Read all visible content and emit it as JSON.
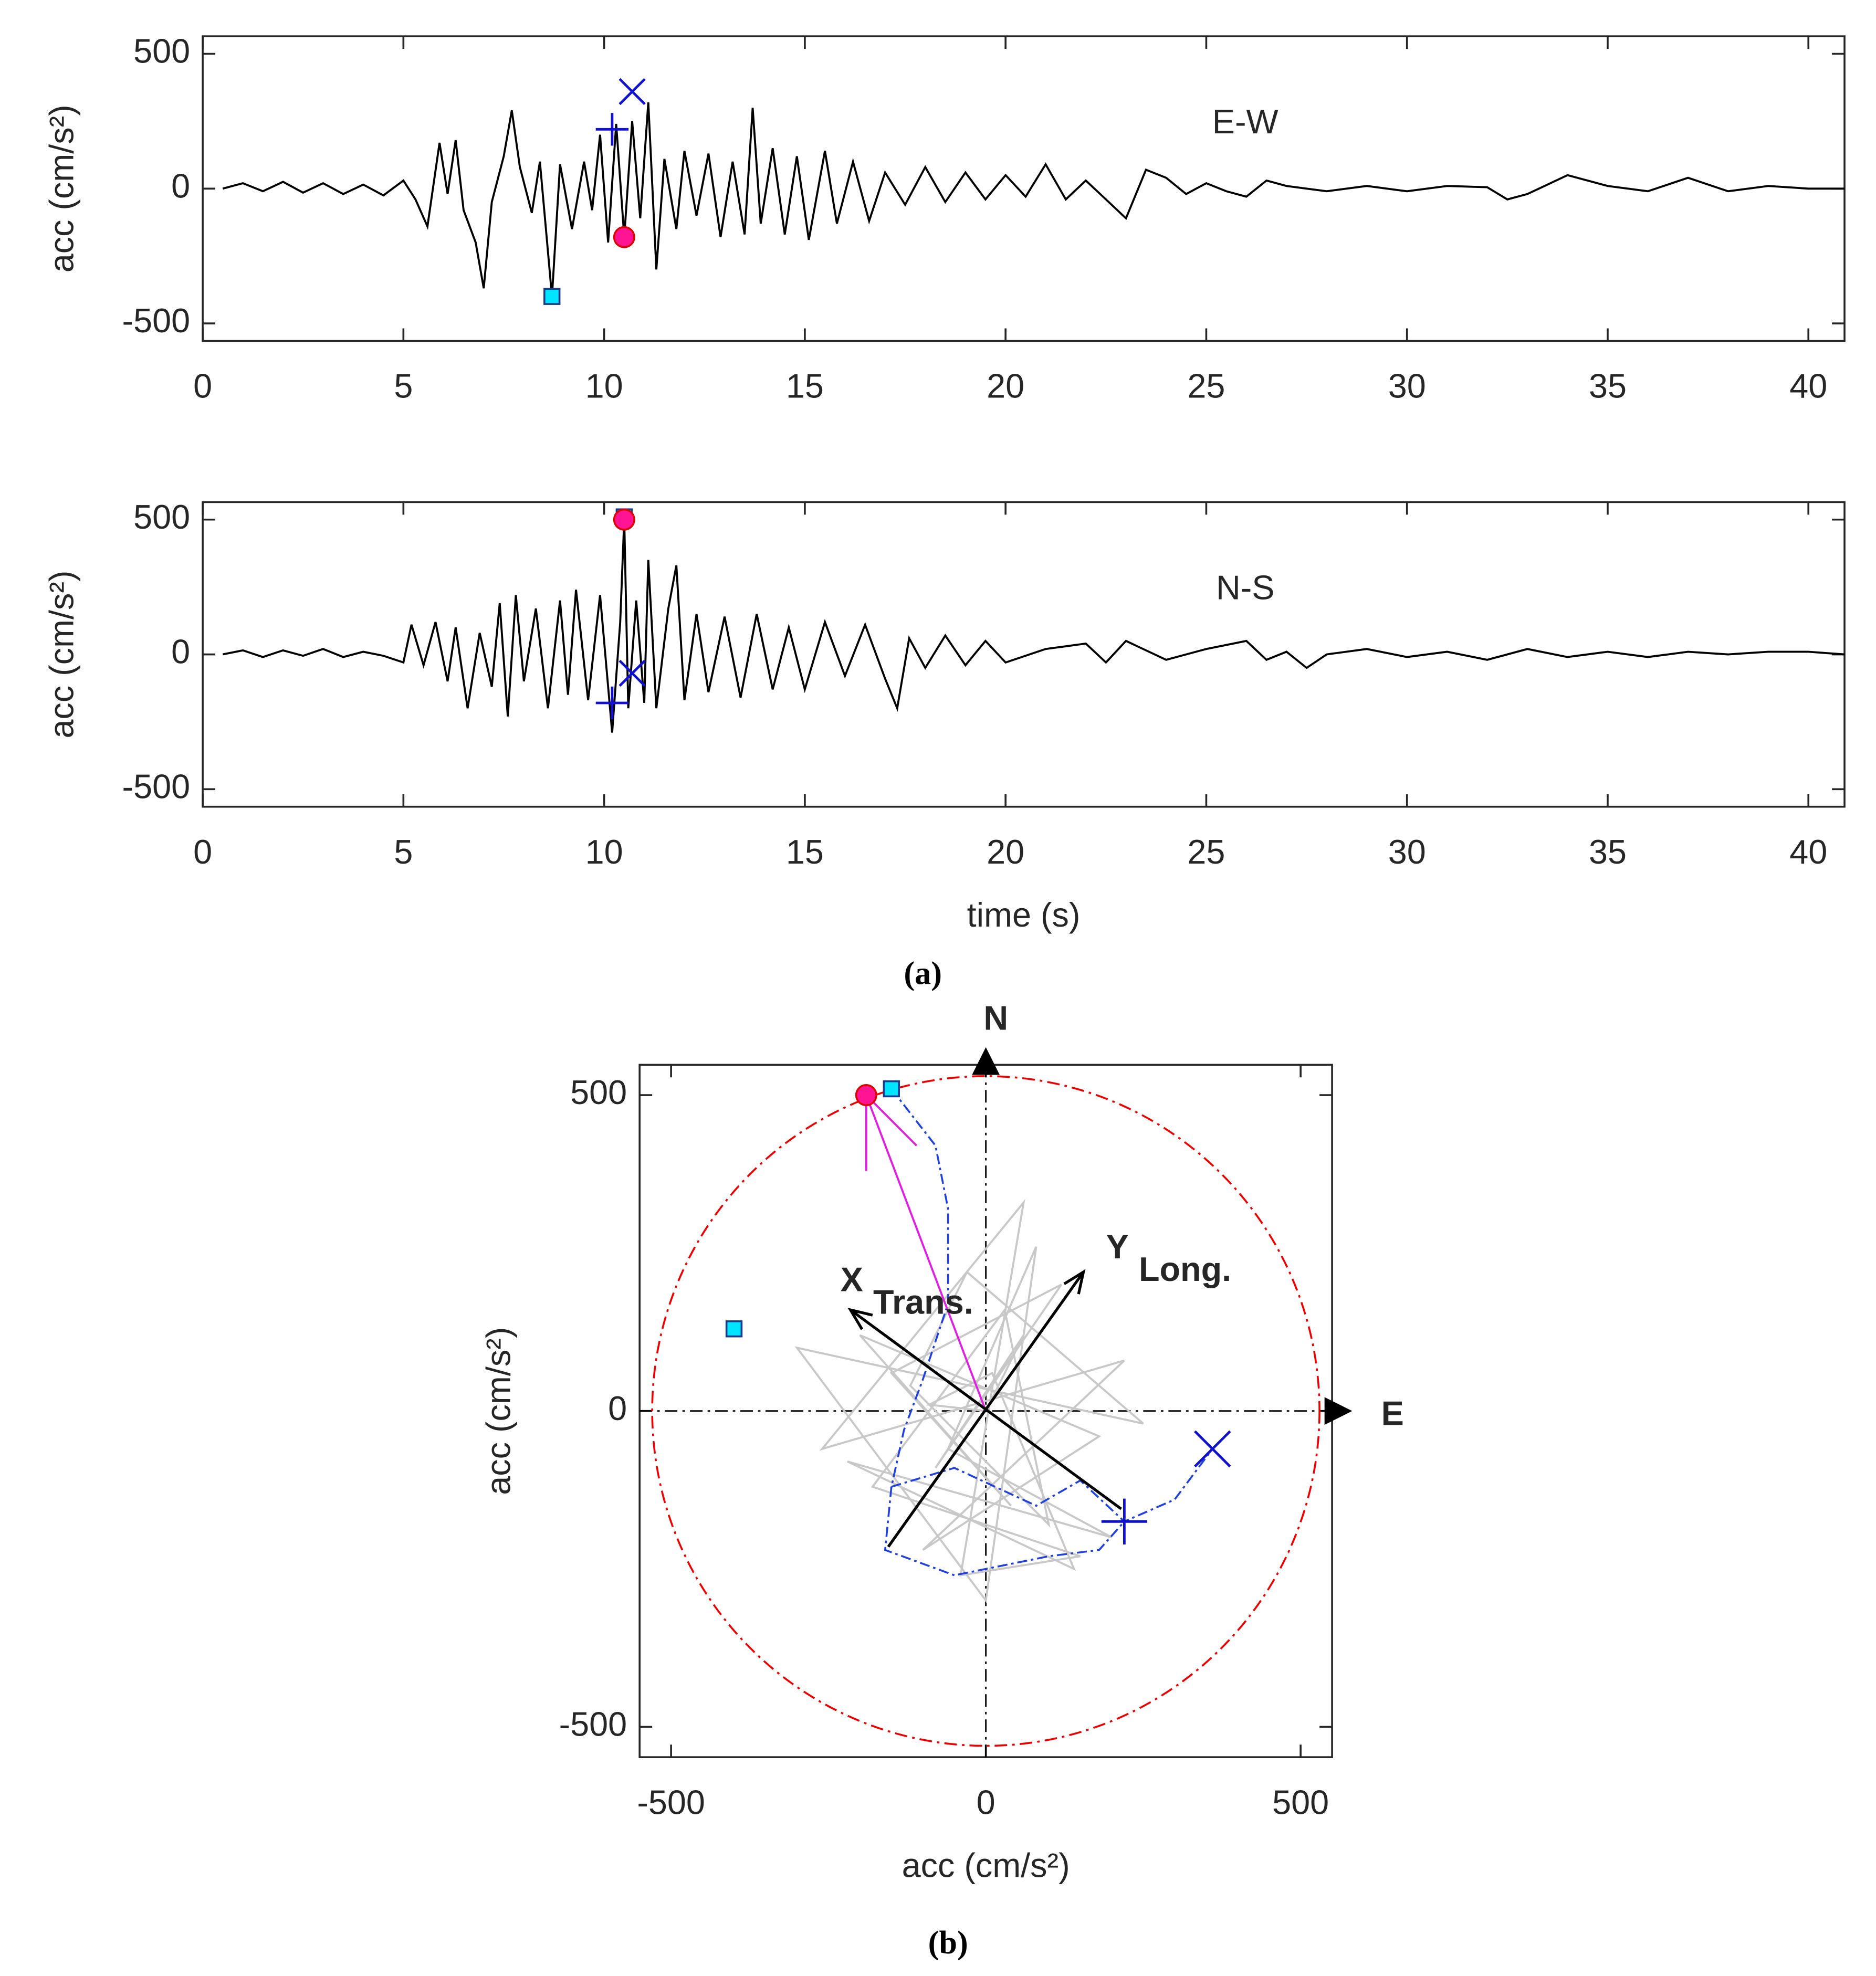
{
  "chart_data": [
    {
      "type": "line",
      "ylabel": "acc (cm/s²)",
      "annotation": "E-W",
      "xlim": [
        0,
        40.9
      ],
      "ylim": [
        -565,
        565
      ],
      "xticks": [
        0,
        5,
        10,
        15,
        20,
        25,
        30,
        35,
        40
      ],
      "yticks": [
        -500,
        0,
        500
      ],
      "x": [
        0.5,
        1,
        1.5,
        2,
        2.5,
        3,
        3.5,
        4,
        4.5,
        5,
        5.3,
        5.6,
        5.9,
        6.1,
        6.3,
        6.5,
        6.8,
        7,
        7.2,
        7.5,
        7.7,
        7.9,
        8.2,
        8.4,
        8.7,
        8.9,
        9.2,
        9.5,
        9.7,
        9.9,
        10.1,
        10.3,
        10.5,
        10.7,
        10.9,
        11.1,
        11.3,
        11.5,
        11.8,
        12,
        12.3,
        12.6,
        12.9,
        13.2,
        13.5,
        13.7,
        13.9,
        14.2,
        14.5,
        14.8,
        15.1,
        15.5,
        15.8,
        16.2,
        16.6,
        17,
        17.5,
        18,
        18.5,
        19,
        19.5,
        20,
        20.5,
        21,
        21.5,
        22,
        22.5,
        23,
        23.5,
        24,
        24.5,
        25,
        25.5,
        26,
        26.5,
        27,
        28,
        29,
        30,
        31,
        32,
        32.5,
        33,
        34,
        35,
        36,
        37,
        38,
        39,
        40,
        40.9
      ],
      "series": [
        {
          "color": "#000000",
          "values": [
            0,
            20,
            -10,
            25,
            -15,
            20,
            -20,
            15,
            -25,
            30,
            -40,
            -140,
            170,
            -20,
            180,
            -80,
            -200,
            -370,
            -50,
            120,
            290,
            80,
            -90,
            100,
            -400,
            90,
            -150,
            100,
            -80,
            200,
            -200,
            240,
            -180,
            250,
            -110,
            320,
            -300,
            110,
            -150,
            140,
            -100,
            130,
            -180,
            100,
            -170,
            300,
            -130,
            150,
            -170,
            120,
            -190,
            140,
            -130,
            100,
            -120,
            60,
            -60,
            80,
            -50,
            60,
            -40,
            50,
            -30,
            90,
            -40,
            30,
            -40,
            -110,
            70,
            40,
            -20,
            20,
            -10,
            -30,
            30,
            10,
            -10,
            10,
            -10,
            10,
            5,
            -40,
            -20,
            50,
            10,
            -10,
            40,
            -10,
            10,
            0,
            0
          ]
        }
      ],
      "markers": [
        {
          "shape": "square",
          "x": 8.7,
          "y": -400
        },
        {
          "shape": "circle",
          "x": 10.5,
          "y": -180
        },
        {
          "shape": "plus",
          "x": 10.2,
          "y": 220
        },
        {
          "shape": "cross",
          "x": 10.7,
          "y": 360
        }
      ]
    },
    {
      "type": "line",
      "ylabel": "acc (cm/s²)",
      "xlabel": "time (s)",
      "annotation": "N-S",
      "caption": "(a)",
      "xlim": [
        0,
        40.9
      ],
      "ylim": [
        -565,
        565
      ],
      "xticks": [
        0,
        5,
        10,
        15,
        20,
        25,
        30,
        35,
        40
      ],
      "yticks": [
        -500,
        0,
        500
      ],
      "x": [
        0.5,
        1,
        1.5,
        2,
        2.5,
        3,
        3.5,
        4,
        4.5,
        5,
        5.2,
        5.5,
        5.8,
        6.1,
        6.3,
        6.6,
        6.9,
        7.2,
        7.4,
        7.6,
        7.8,
        8,
        8.3,
        8.6,
        8.9,
        9.1,
        9.3,
        9.6,
        9.9,
        10.2,
        10.4,
        10.5,
        10.6,
        10.8,
        11,
        11.1,
        11.3,
        11.6,
        11.8,
        12,
        12.3,
        12.6,
        13,
        13.4,
        13.8,
        14.2,
        14.6,
        15,
        15.5,
        16,
        16.5,
        17,
        17.3,
        17.6,
        18,
        18.5,
        19,
        19.5,
        20,
        21,
        22,
        22.5,
        23,
        24,
        25,
        26,
        26.5,
        27,
        27.5,
        28,
        29,
        30,
        31,
        32,
        33,
        34,
        35,
        36,
        37,
        38,
        39,
        40,
        40.9
      ],
      "series": [
        {
          "color": "#000000",
          "values": [
            0,
            15,
            -10,
            15,
            -5,
            20,
            -10,
            10,
            -5,
            -30,
            110,
            -40,
            120,
            -100,
            100,
            -200,
            80,
            -120,
            190,
            -230,
            220,
            -100,
            170,
            -200,
            200,
            -150,
            240,
            -170,
            220,
            -290,
            120,
            500,
            -200,
            200,
            -180,
            350,
            -200,
            170,
            330,
            -170,
            150,
            -140,
            140,
            -160,
            150,
            -130,
            100,
            -130,
            120,
            -80,
            110,
            -90,
            -200,
            60,
            -50,
            70,
            -40,
            50,
            -30,
            20,
            40,
            -30,
            50,
            -20,
            20,
            50,
            -20,
            10,
            -50,
            0,
            20,
            -10,
            10,
            -20,
            20,
            -10,
            10,
            -10,
            10,
            0,
            10,
            10,
            0
          ]
        }
      ],
      "markers": [
        {
          "shape": "square",
          "x": 10.5,
          "y": 510
        },
        {
          "shape": "circle",
          "x": 10.5,
          "y": 500
        },
        {
          "shape": "plus",
          "x": 10.2,
          "y": -180
        },
        {
          "shape": "cross",
          "x": 10.7,
          "y": -70
        }
      ]
    },
    {
      "type": "scatter",
      "xlabel": "acc (cm/s²)",
      "ylabel": "acc (cm/s²)",
      "caption": "(b)",
      "north": "N",
      "east": "E",
      "xlim": [
        -550,
        550
      ],
      "ylim": [
        -548,
        548
      ],
      "xticks": [
        -500,
        0,
        500
      ],
      "yticks": [
        -500,
        0,
        500
      ],
      "circle_radius": 530,
      "trace": {
        "x": [
          0,
          60,
          -80,
          120,
          -150,
          40,
          -200,
          180,
          -100,
          220,
          -260,
          60,
          -40,
          150,
          -180,
          30,
          100,
          -120,
          -30,
          250,
          -300,
          0,
          80,
          -60,
          200,
          -220,
          140,
          10,
          -90,
          0
        ],
        "y": [
          0,
          120,
          -90,
          200,
          60,
          -150,
          120,
          -40,
          -220,
          80,
          -60,
          330,
          -260,
          -230,
          -120,
          160,
          -180,
          40,
          220,
          -20,
          100,
          -300,
          260,
          -60,
          -200,
          -80,
          -250,
          60,
          10,
          0
        ]
      },
      "path": {
        "x": [
          -150,
          -80,
          -60,
          -60,
          -100,
          -130,
          -150,
          -50,
          80,
          150,
          220,
          300,
          360
        ],
        "y": [
          510,
          420,
          320,
          170,
          50,
          -30,
          -120,
          -90,
          -150,
          -110,
          -175,
          -140,
          -60
        ]
      },
      "loop": {
        "x": [
          -150,
          -160,
          -50,
          100,
          180,
          220
        ],
        "y": [
          -120,
          -220,
          -260,
          -230,
          -220,
          -175
        ]
      },
      "peak": {
        "x": [
          0,
          -190,
          -190,
          -190,
          -110
        ],
        "y": [
          0,
          500,
          380,
          500,
          420
        ]
      },
      "arrows": [
        {
          "label": "X",
          "sub": "Trans.",
          "from": [
            215,
            -155
          ],
          "to": [
            -215,
            160
          ]
        },
        {
          "label": "Y",
          "sub": "Long.",
          "from": [
            -155,
            -215
          ],
          "to": [
            155,
            220
          ]
        }
      ],
      "markers": [
        {
          "shape": "circle",
          "x": -190,
          "y": 500
        },
        {
          "shape": "square",
          "x": -150,
          "y": 510
        },
        {
          "shape": "square",
          "x": -400,
          "y": 130
        },
        {
          "shape": "cross",
          "x": 360,
          "y": -60
        },
        {
          "shape": "plus",
          "x": 220,
          "y": -175
        }
      ]
    }
  ]
}
